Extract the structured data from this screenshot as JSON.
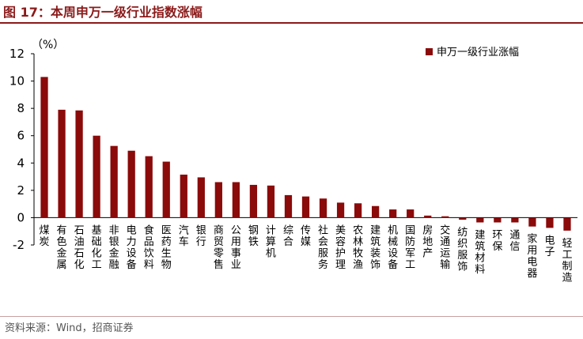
{
  "figure_label": "图 17：本周申万一级行业指数涨幅",
  "source_note": "资料来源：Wind，招商证券",
  "chart_data": {
    "type": "bar",
    "title": "",
    "ylabel": "（%）",
    "xlabel": "",
    "ylim": [
      -2,
      12
    ],
    "yticks": [
      -2,
      0,
      2,
      4,
      6,
      8,
      10,
      12
    ],
    "grid": false,
    "legend_position": "top-right",
    "bar_color": "#8b0a0a",
    "series": [
      {
        "name": "申万一级行业涨幅",
        "values": [
          10.3,
          7.9,
          7.85,
          6.0,
          5.25,
          4.9,
          4.5,
          4.1,
          3.15,
          2.95,
          2.6,
          2.6,
          2.4,
          2.35,
          1.65,
          1.55,
          1.4,
          1.1,
          1.05,
          0.85,
          0.6,
          0.6,
          0.15,
          0.1,
          -0.15,
          -0.35,
          -0.35,
          -0.35,
          -0.65,
          -0.75,
          -0.95
        ]
      }
    ],
    "categories": [
      "煤炭",
      "有色金属",
      "石油石化",
      "基础化工",
      "非银金融",
      "电力设备",
      "食品饮料",
      "医药生物",
      "汽车",
      "银行",
      "商贸零售",
      "公用事业",
      "钢铁",
      "计算机",
      "综合",
      "传媒",
      "社会服务",
      "美容护理",
      "农林牧渔",
      "建筑装饰",
      "机械设备",
      "国防军工",
      "房地产",
      "交通运输",
      "纺织服饰",
      "建筑材料",
      "环保",
      "通信",
      "家用电器",
      "电子",
      "轻工制造"
    ]
  }
}
